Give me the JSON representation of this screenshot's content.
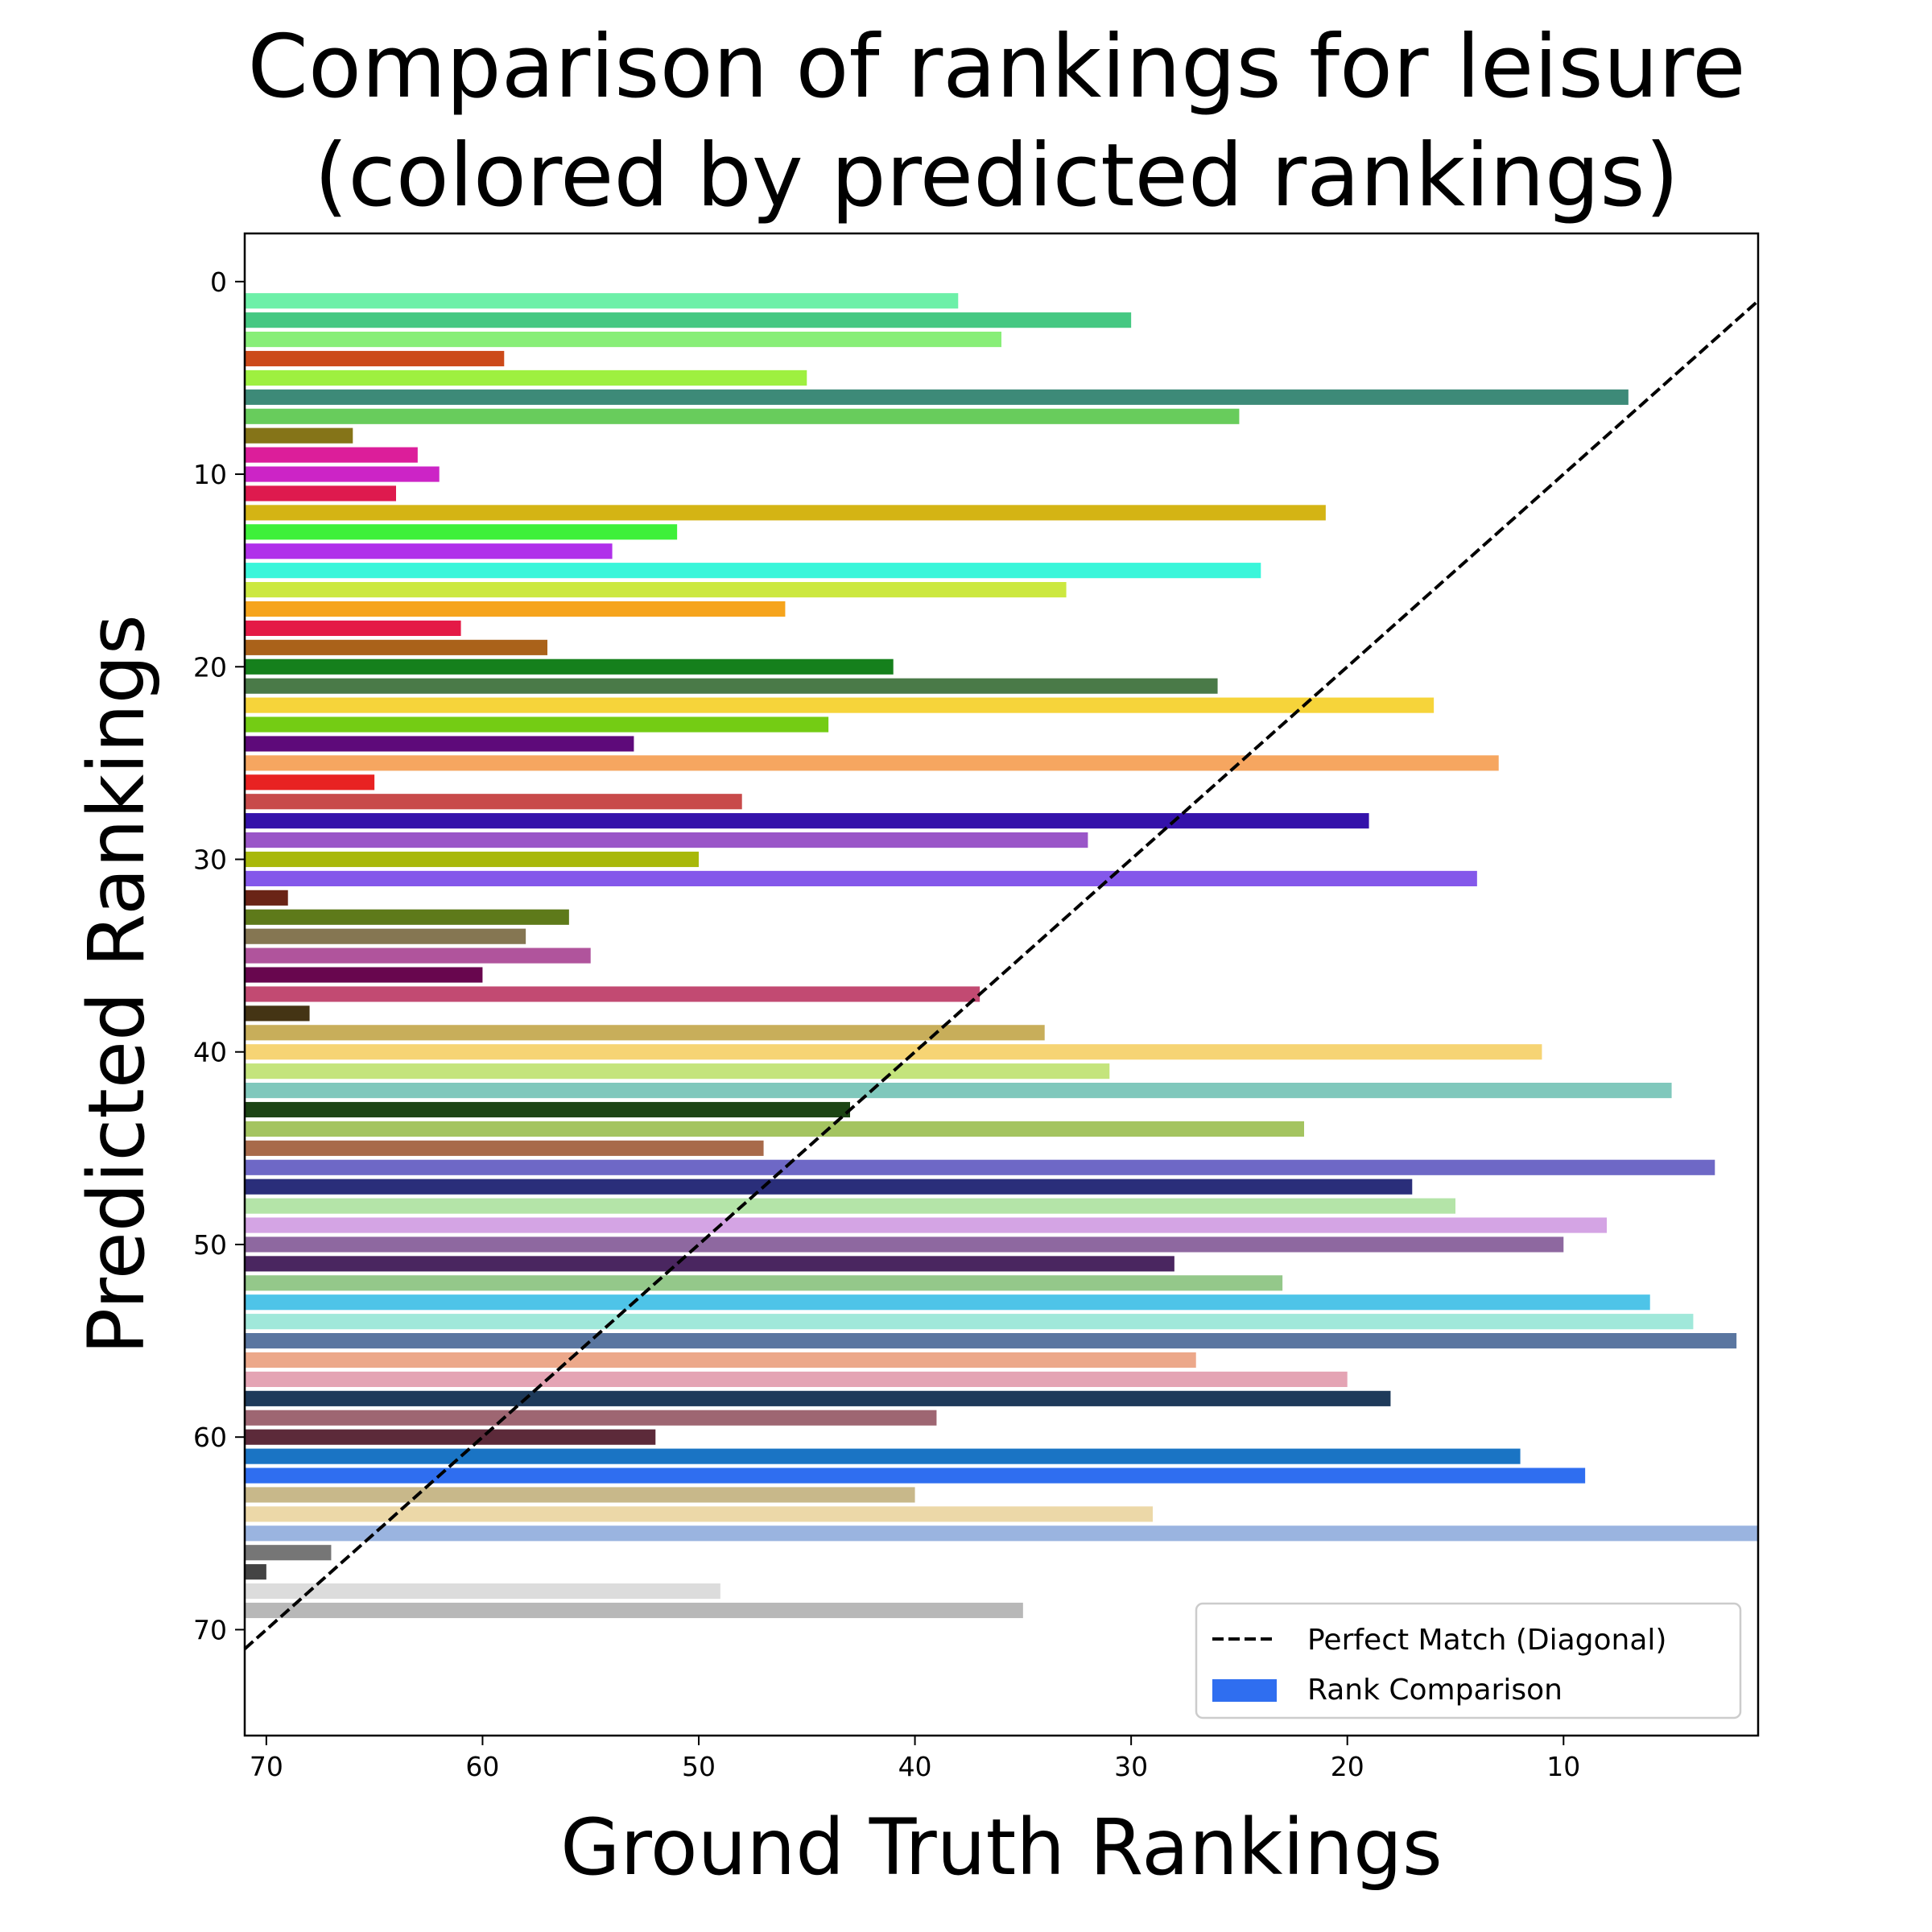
{
  "chart_data": {
    "type": "bar",
    "orientation": "horizontal",
    "title_lines": [
      "Comparison of rankings for leisure",
      "(colored by predicted rankings)"
    ],
    "xlabel": "Ground Truth Rankings",
    "ylabel": "Predicted Rankings",
    "xlim": [
      71,
      1
    ],
    "ylim": [
      75.5,
      -2.5
    ],
    "x_ticks": [
      70,
      60,
      50,
      40,
      30,
      20,
      10
    ],
    "y_ticks": [
      0,
      10,
      20,
      30,
      40,
      50,
      60,
      70
    ],
    "grid": false,
    "legend_position": "lower-right",
    "legend": [
      {
        "label": "Perfect Match (Diagonal)",
        "kind": "dashed-line",
        "color": "#000000"
      },
      {
        "label": "Rank Comparison",
        "kind": "patch",
        "color": "#2f6ef0"
      }
    ],
    "diagonal": {
      "from": [
        71,
        71
      ],
      "to": [
        1,
        1
      ],
      "style": "dashed",
      "color": "#000000"
    },
    "bars": [
      {
        "predicted": 1,
        "ground_truth": 38,
        "color": "#6df0a8"
      },
      {
        "predicted": 2,
        "ground_truth": 30,
        "color": "#45c882"
      },
      {
        "predicted": 3,
        "ground_truth": 36,
        "color": "#88ee78"
      },
      {
        "predicted": 4,
        "ground_truth": 59,
        "color": "#cc4a1a"
      },
      {
        "predicted": 5,
        "ground_truth": 45,
        "color": "#9ef040"
      },
      {
        "predicted": 6,
        "ground_truth": 7,
        "color": "#3d8a78"
      },
      {
        "predicted": 7,
        "ground_truth": 25,
        "color": "#68cc5c"
      },
      {
        "predicted": 8,
        "ground_truth": 66,
        "color": "#857418"
      },
      {
        "predicted": 9,
        "ground_truth": 63,
        "color": "#dc1e9a"
      },
      {
        "predicted": 10,
        "ground_truth": 62,
        "color": "#cc24c6"
      },
      {
        "predicted": 11,
        "ground_truth": 64,
        "color": "#de1a4e"
      },
      {
        "predicted": 12,
        "ground_truth": 21,
        "color": "#d4b414"
      },
      {
        "predicted": 13,
        "ground_truth": 51,
        "color": "#3ef03a"
      },
      {
        "predicted": 14,
        "ground_truth": 54,
        "color": "#b030ea"
      },
      {
        "predicted": 15,
        "ground_truth": 24,
        "color": "#3af6da"
      },
      {
        "predicted": 16,
        "ground_truth": 33,
        "color": "#cce840"
      },
      {
        "predicted": 17,
        "ground_truth": 46,
        "color": "#f6a41c"
      },
      {
        "predicted": 18,
        "ground_truth": 61,
        "color": "#e41a46"
      },
      {
        "predicted": 19,
        "ground_truth": 57,
        "color": "#aa621a"
      },
      {
        "predicted": 20,
        "ground_truth": 41,
        "color": "#15801c"
      },
      {
        "predicted": 21,
        "ground_truth": 26,
        "color": "#4a7a48"
      },
      {
        "predicted": 22,
        "ground_truth": 16,
        "color": "#f6d43a"
      },
      {
        "predicted": 23,
        "ground_truth": 44,
        "color": "#74cc14"
      },
      {
        "predicted": 24,
        "ground_truth": 53,
        "color": "#5e0a7a"
      },
      {
        "predicted": 25,
        "ground_truth": 13,
        "color": "#f6a660"
      },
      {
        "predicted": 26,
        "ground_truth": 65,
        "color": "#e82222"
      },
      {
        "predicted": 27,
        "ground_truth": 48,
        "color": "#c84a4a"
      },
      {
        "predicted": 28,
        "ground_truth": 19,
        "color": "#3412aa"
      },
      {
        "predicted": 29,
        "ground_truth": 32,
        "color": "#9a56c8"
      },
      {
        "predicted": 30,
        "ground_truth": 50,
        "color": "#a8b80a"
      },
      {
        "predicted": 31,
        "ground_truth": 14,
        "color": "#8458ea"
      },
      {
        "predicted": 32,
        "ground_truth": 69,
        "color": "#6a2416"
      },
      {
        "predicted": 33,
        "ground_truth": 56,
        "color": "#5e7a1a"
      },
      {
        "predicted": 34,
        "ground_truth": 58,
        "color": "#857652"
      },
      {
        "predicted": 35,
        "ground_truth": 55,
        "color": "#b0549c"
      },
      {
        "predicted": 36,
        "ground_truth": 60,
        "color": "#68064e"
      },
      {
        "predicted": 37,
        "ground_truth": 37,
        "color": "#c24a72"
      },
      {
        "predicted": 38,
        "ground_truth": 68,
        "color": "#443414"
      },
      {
        "predicted": 39,
        "ground_truth": 34,
        "color": "#c8ae5a"
      },
      {
        "predicted": 40,
        "ground_truth": 11,
        "color": "#f6d474"
      },
      {
        "predicted": 41,
        "ground_truth": 31,
        "color": "#c4e47c"
      },
      {
        "predicted": 42,
        "ground_truth": 5,
        "color": "#80c8bc"
      },
      {
        "predicted": 43,
        "ground_truth": 43,
        "color": "#1c4414"
      },
      {
        "predicted": 44,
        "ground_truth": 22,
        "color": "#a4c460"
      },
      {
        "predicted": 45,
        "ground_truth": 47,
        "color": "#a86a4a"
      },
      {
        "predicted": 46,
        "ground_truth": 3,
        "color": "#6e68c6"
      },
      {
        "predicted": 47,
        "ground_truth": 17,
        "color": "#2a2e7a"
      },
      {
        "predicted": 48,
        "ground_truth": 15,
        "color": "#b4e4a8"
      },
      {
        "predicted": 49,
        "ground_truth": 8,
        "color": "#d4a4e4"
      },
      {
        "predicted": 50,
        "ground_truth": 10,
        "color": "#8e68a0"
      },
      {
        "predicted": 51,
        "ground_truth": 28,
        "color": "#4a2660"
      },
      {
        "predicted": 52,
        "ground_truth": 23,
        "color": "#94c88a"
      },
      {
        "predicted": 53,
        "ground_truth": 6,
        "color": "#4ec4e8"
      },
      {
        "predicted": 54,
        "ground_truth": 4,
        "color": "#a0e8da"
      },
      {
        "predicted": 55,
        "ground_truth": 2,
        "color": "#5a76a0"
      },
      {
        "predicted": 56,
        "ground_truth": 27,
        "color": "#eca88a"
      },
      {
        "predicted": 57,
        "ground_truth": 20,
        "color": "#e4a4b4"
      },
      {
        "predicted": 58,
        "ground_truth": 18,
        "color": "#1e3a5a"
      },
      {
        "predicted": 59,
        "ground_truth": 39,
        "color": "#9e6672"
      },
      {
        "predicted": 60,
        "ground_truth": 52,
        "color": "#5c2a3a"
      },
      {
        "predicted": 61,
        "ground_truth": 12,
        "color": "#1a74c4"
      },
      {
        "predicted": 62,
        "ground_truth": 9,
        "color": "#2f6ef0"
      },
      {
        "predicted": 63,
        "ground_truth": 40,
        "color": "#c8b88a"
      },
      {
        "predicted": 64,
        "ground_truth": 29,
        "color": "#ecd8a8"
      },
      {
        "predicted": 65,
        "ground_truth": 1,
        "color": "#9ab4e0"
      },
      {
        "predicted": 66,
        "ground_truth": 67,
        "color": "#767676"
      },
      {
        "predicted": 67,
        "ground_truth": 70,
        "color": "#444444"
      },
      {
        "predicted": 68,
        "ground_truth": 49,
        "color": "#dcdcdc"
      },
      {
        "predicted": 69,
        "ground_truth": 35,
        "color": "#b8b8b8"
      }
    ]
  }
}
